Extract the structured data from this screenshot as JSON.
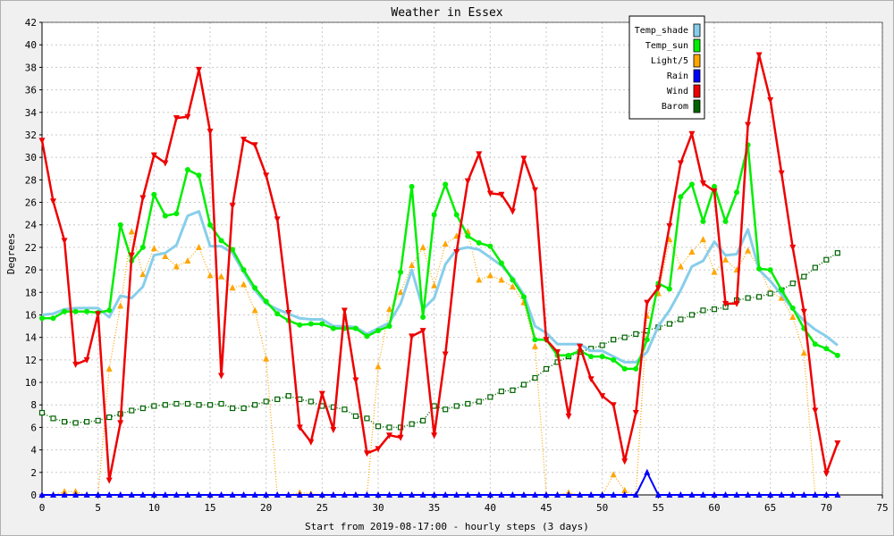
{
  "chart_data": {
    "type": "line",
    "title": "Weather in Essex",
    "xlabel": "Start from 2019-08-17:00 - hourly steps (3 days)",
    "ylabel": "Degrees",
    "xlim": [
      0,
      75
    ],
    "ylim": [
      0,
      42
    ],
    "x_ticks": [
      0,
      5,
      10,
      15,
      20,
      25,
      30,
      35,
      40,
      45,
      50,
      55,
      60,
      65,
      70,
      75
    ],
    "y_ticks": [
      0,
      2,
      4,
      6,
      8,
      10,
      12,
      14,
      16,
      18,
      20,
      22,
      24,
      26,
      28,
      30,
      32,
      34,
      36,
      38,
      40,
      42
    ],
    "grid": true,
    "legend_position": "top-right",
    "x": [
      0,
      1,
      2,
      3,
      4,
      5,
      6,
      7,
      8,
      9,
      10,
      11,
      12,
      13,
      14,
      15,
      16,
      17,
      18,
      19,
      20,
      21,
      22,
      23,
      24,
      25,
      26,
      27,
      28,
      29,
      30,
      31,
      32,
      33,
      34,
      35,
      36,
      37,
      38,
      39,
      40,
      41,
      42,
      43,
      44,
      45,
      46,
      47,
      48,
      49,
      50,
      51,
      52,
      53,
      54,
      55,
      56,
      57,
      58,
      59,
      60,
      61,
      62,
      63,
      64,
      65,
      66,
      67,
      68,
      69,
      70,
      71
    ],
    "series": [
      {
        "name": "Temp_shade",
        "color": "#87ceeb",
        "values": [
          16.0,
          16.1,
          16.5,
          16.6,
          16.6,
          16.6,
          15.8,
          17.7,
          17.5,
          18.5,
          21.3,
          21.5,
          22.2,
          24.8,
          25.2,
          22.1,
          22.1,
          21.5,
          19.8,
          18.2,
          17.0,
          16.5,
          16.1,
          15.7,
          15.6,
          15.6,
          15.0,
          15.0,
          14.9,
          14.3,
          14.8,
          15.3,
          17.0,
          20.0,
          16.5,
          17.5,
          20.5,
          21.8,
          22.0,
          21.8,
          21.1,
          20.4,
          19.3,
          17.8,
          15.0,
          14.4,
          13.4,
          13.4,
          13.4,
          12.8,
          12.8,
          12.3,
          11.8,
          11.8,
          12.7,
          15.0,
          16.4,
          18.2,
          20.3,
          20.8,
          22.5,
          21.3,
          21.4,
          23.6,
          20.0,
          19.0,
          17.8,
          16.5,
          15.5,
          14.7,
          14.1,
          13.3
        ]
      },
      {
        "name": "Temp_sun",
        "color": "#00ee00",
        "values": [
          15.7,
          15.7,
          16.3,
          16.3,
          16.3,
          16.2,
          16.4,
          24.0,
          20.8,
          22.0,
          26.7,
          24.8,
          25.0,
          28.9,
          28.4,
          24.0,
          22.6,
          21.8,
          20.0,
          18.4,
          17.2,
          16.1,
          15.5,
          15.1,
          15.2,
          15.2,
          14.8,
          14.8,
          14.8,
          14.1,
          14.6,
          15.0,
          19.8,
          27.4,
          15.8,
          24.9,
          27.6,
          24.9,
          23.0,
          22.4,
          22.1,
          20.6,
          19.1,
          17.6,
          13.8,
          13.8,
          12.4,
          12.4,
          12.8,
          12.3,
          12.3,
          12.0,
          11.2,
          11.2,
          13.8,
          18.8,
          18.3,
          26.5,
          27.6,
          24.3,
          27.4,
          24.3,
          26.9,
          31.1,
          20.1,
          20.0,
          18.2,
          16.6,
          14.8,
          13.4,
          13.0,
          12.4
        ]
      },
      {
        "name": "Light/5",
        "color": "#ffa500",
        "values": [
          0,
          0,
          0.3,
          0.3,
          0,
          0,
          11.2,
          16.8,
          23.4,
          19.6,
          21.9,
          21.2,
          20.3,
          20.8,
          22.0,
          19.5,
          19.4,
          18.4,
          18.7,
          16.4,
          12.1,
          0,
          0,
          0.2,
          0.1,
          0,
          0,
          0,
          0,
          0,
          11.4,
          16.5,
          18.0,
          20.4,
          22.0,
          18.6,
          22.3,
          23.0,
          23.4,
          19.1,
          19.5,
          19.1,
          18.5,
          17.1,
          13.2,
          0,
          0,
          0.2,
          0,
          0,
          0,
          1.8,
          0.4,
          0,
          15.9,
          17.9,
          22.7,
          20.3,
          21.6,
          22.7,
          19.8,
          20.9,
          20.0,
          21.7,
          20.2,
          18.0,
          17.5,
          15.8,
          12.6,
          0,
          0,
          0
        ]
      },
      {
        "name": "Rain",
        "color": "#0000ff",
        "values": [
          0,
          0,
          0,
          0,
          0,
          0,
          0,
          0,
          0,
          0,
          0,
          0,
          0,
          0,
          0,
          0,
          0,
          0,
          0,
          0,
          0,
          0,
          0,
          0,
          0,
          0,
          0,
          0,
          0,
          0,
          0,
          0,
          0,
          0,
          0,
          0,
          0,
          0,
          0,
          0,
          0,
          0,
          0,
          0,
          0,
          0,
          0,
          0,
          0,
          0,
          0,
          0,
          0,
          0,
          2.0,
          0,
          0,
          0,
          0,
          0,
          0,
          0,
          0,
          0,
          0,
          0,
          0,
          0,
          0,
          0,
          0,
          0
        ]
      },
      {
        "name": "Wind",
        "color": "#ee0000",
        "values": [
          31.5,
          26.1,
          22.6,
          11.6,
          12.0,
          16.1,
          1.3,
          6.4,
          21.3,
          26.4,
          30.2,
          29.5,
          33.5,
          33.6,
          37.8,
          32.3,
          10.6,
          25.7,
          31.6,
          31.1,
          28.4,
          24.5,
          16.2,
          6.0,
          4.7,
          9.0,
          5.8,
          16.4,
          10.2,
          3.7,
          4.1,
          5.3,
          5.1,
          14.1,
          14.6,
          5.3,
          12.5,
          21.6,
          27.9,
          30.3,
          26.8,
          26.7,
          25.2,
          29.9,
          27.1,
          13.8,
          12.7,
          7.0,
          13.2,
          10.3,
          8.8,
          8.0,
          3.0,
          7.3,
          17.1,
          18.4,
          23.9,
          29.5,
          32.1,
          27.7,
          27.0,
          17.0,
          17.0,
          32.9,
          39.1,
          35.1,
          28.6,
          22.0,
          16.3,
          7.5,
          1.9,
          4.6
        ]
      },
      {
        "name": "Barom",
        "color": "#006400",
        "values": [
          7.3,
          6.8,
          6.5,
          6.4,
          6.5,
          6.6,
          6.9,
          7.2,
          7.5,
          7.7,
          7.9,
          8.0,
          8.1,
          8.1,
          8.0,
          8.0,
          8.1,
          7.7,
          7.7,
          8.0,
          8.3,
          8.5,
          8.8,
          8.5,
          8.3,
          7.9,
          7.8,
          7.6,
          7.0,
          6.8,
          6.1,
          6.0,
          6.0,
          6.3,
          6.6,
          7.9,
          7.6,
          7.9,
          8.1,
          8.3,
          8.7,
          9.2,
          9.3,
          9.8,
          10.4,
          11.2,
          11.8,
          12.3,
          12.7,
          13.0,
          13.3,
          13.8,
          14.0,
          14.3,
          14.6,
          14.9,
          15.2,
          15.6,
          16.0,
          16.4,
          16.5,
          16.7,
          17.3,
          17.5,
          17.6,
          17.9,
          18.2,
          18.8,
          19.4,
          20.2,
          20.9,
          21.5
        ]
      }
    ]
  }
}
